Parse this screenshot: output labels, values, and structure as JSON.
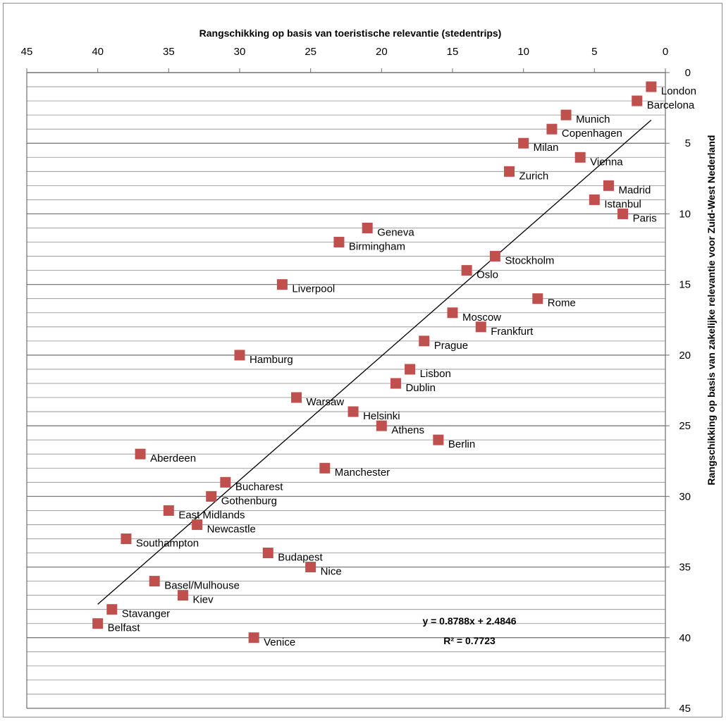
{
  "chart_data": {
    "type": "scatter",
    "title": "",
    "xlabel": "Rangschikking op basis van toeristische relevantie (stedentrips)",
    "ylabel": "Rangschikking  op  basis  van  zakelijke   relevantie  voor  Zuid-West  Nederland",
    "xlim": [
      45,
      0
    ],
    "ylim": [
      45,
      0
    ],
    "x_reversed": true,
    "y_reversed": true,
    "x_axis_position": "top",
    "y_axis_position": "right",
    "x_ticks": [
      45,
      40,
      35,
      30,
      25,
      20,
      15,
      10,
      5,
      0
    ],
    "y_ticks": [
      0,
      5,
      10,
      15,
      20,
      25,
      30,
      35,
      40,
      45
    ],
    "grid": "horizontal major and minor",
    "marker_color": "#c0504d",
    "points": [
      {
        "label": "London",
        "x": 1,
        "y": 1
      },
      {
        "label": "Barcelona",
        "x": 2,
        "y": 2
      },
      {
        "label": "Munich",
        "x": 7,
        "y": 3
      },
      {
        "label": "Copenhagen",
        "x": 8,
        "y": 4
      },
      {
        "label": "Milan",
        "x": 10,
        "y": 5
      },
      {
        "label": "Vienna",
        "x": 6,
        "y": 6
      },
      {
        "label": "Zurich",
        "x": 11,
        "y": 7
      },
      {
        "label": "Madrid",
        "x": 4,
        "y": 8
      },
      {
        "label": "Istanbul",
        "x": 5,
        "y": 9
      },
      {
        "label": "Paris",
        "x": 3,
        "y": 10
      },
      {
        "label": "Geneva",
        "x": 21,
        "y": 11
      },
      {
        "label": "Birmingham",
        "x": 23,
        "y": 12
      },
      {
        "label": "Stockholm",
        "x": 12,
        "y": 13
      },
      {
        "label": "Oslo",
        "x": 14,
        "y": 14
      },
      {
        "label": "Liverpool",
        "x": 27,
        "y": 15
      },
      {
        "label": "Rome",
        "x": 9,
        "y": 16
      },
      {
        "label": "Moscow",
        "x": 15,
        "y": 17
      },
      {
        "label": "Frankfurt",
        "x": 13,
        "y": 18
      },
      {
        "label": "Prague",
        "x": 17,
        "y": 19
      },
      {
        "label": "Hamburg",
        "x": 30,
        "y": 20
      },
      {
        "label": "Lisbon",
        "x": 18,
        "y": 21
      },
      {
        "label": "Dublin",
        "x": 19,
        "y": 22
      },
      {
        "label": "Warsaw",
        "x": 26,
        "y": 23
      },
      {
        "label": "Helsinki",
        "x": 22,
        "y": 24
      },
      {
        "label": "Athens",
        "x": 20,
        "y": 25
      },
      {
        "label": "Berlin",
        "x": 16,
        "y": 26
      },
      {
        "label": "Aberdeen",
        "x": 37,
        "y": 27
      },
      {
        "label": "Manchester",
        "x": 24,
        "y": 28
      },
      {
        "label": "Bucharest",
        "x": 31,
        "y": 29
      },
      {
        "label": "Gothenburg",
        "x": 32,
        "y": 30
      },
      {
        "label": "East Midlands",
        "x": 35,
        "y": 31
      },
      {
        "label": "Newcastle",
        "x": 33,
        "y": 32
      },
      {
        "label": "Southampton",
        "x": 38,
        "y": 33
      },
      {
        "label": "Budapest",
        "x": 28,
        "y": 34
      },
      {
        "label": "Nice",
        "x": 25,
        "y": 35
      },
      {
        "label": "Basel/Mulhouse",
        "x": 36,
        "y": 36
      },
      {
        "label": "Kiev",
        "x": 34,
        "y": 37
      },
      {
        "label": "Stavanger",
        "x": 39,
        "y": 38
      },
      {
        "label": "Belfast",
        "x": 40,
        "y": 39
      },
      {
        "label": "Venice",
        "x": 29,
        "y": 40
      }
    ],
    "trendline": {
      "type": "linear",
      "slope": 0.8788,
      "intercept": 2.4846,
      "x_range": [
        1,
        40
      ],
      "equation_text": "y = 0.8788x + 2.4846",
      "r2_text": "R² = 0.7723"
    }
  }
}
